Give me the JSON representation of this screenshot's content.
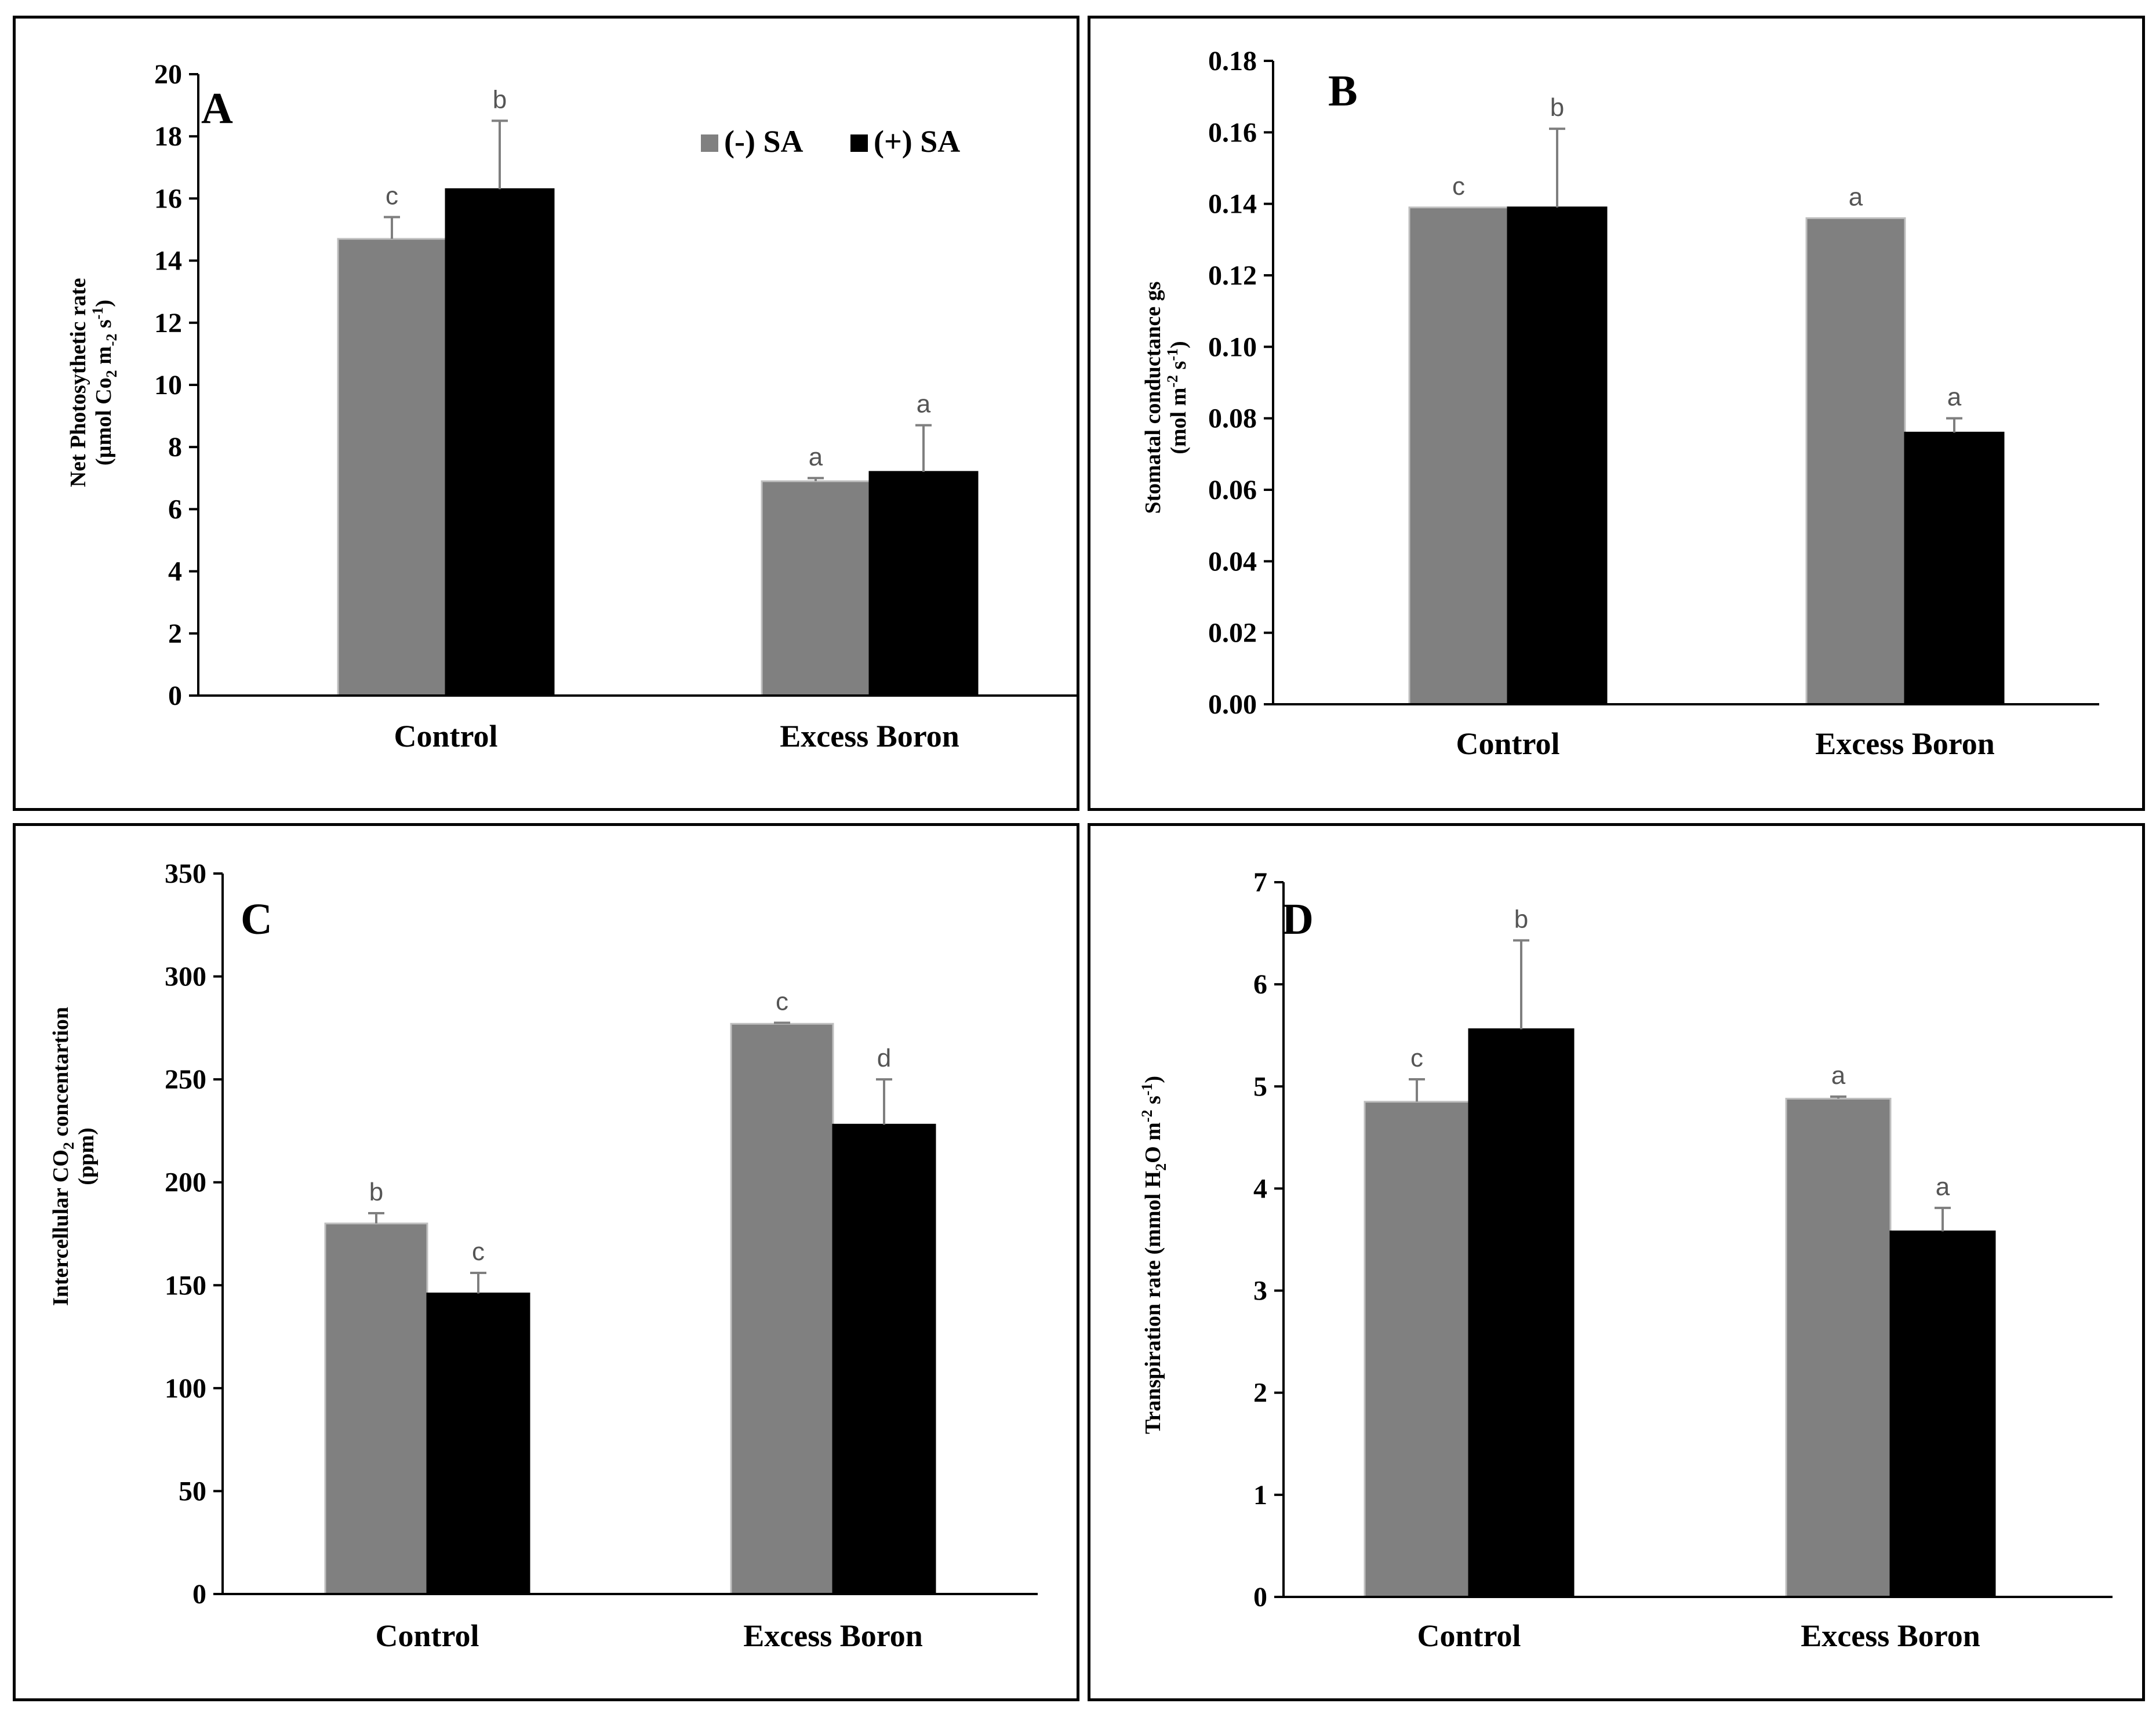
{
  "colors": {
    "minus_sa": "#808080",
    "plus_sa": "#000000",
    "error_bar": "#7f7f7f"
  },
  "legend": {
    "items": [
      "(-) SA",
      "(+) SA"
    ]
  },
  "chart_data": [
    {
      "panel": "A",
      "type": "bar",
      "categories": [
        "Control",
        "Excess Boron"
      ],
      "series": [
        {
          "name": "(-) SA",
          "values": [
            14.7,
            6.9
          ],
          "errors": [
            0.7,
            0.1
          ],
          "letters": [
            "c",
            "a"
          ]
        },
        {
          "name": "(+) SA",
          "values": [
            16.3,
            7.2
          ],
          "errors": [
            2.2,
            1.5
          ],
          "letters": [
            "b",
            "a"
          ]
        }
      ],
      "ylim": [
        0,
        20
      ],
      "yticks": [
        "0",
        "2",
        "4",
        "6",
        "8",
        "10",
        "12",
        "14",
        "16",
        "18",
        "20"
      ],
      "ylabel_line1": "Net Photosythetic rate",
      "ylabel_line2_parts": [
        "(µmol Co",
        "2",
        " m",
        "-2",
        " s",
        "-1",
        ")"
      ]
    },
    {
      "panel": "B",
      "type": "bar",
      "categories": [
        "Control",
        "Excess Boron"
      ],
      "series": [
        {
          "name": "(-) SA",
          "values": [
            0.139,
            0.136
          ],
          "errors": [
            0,
            0
          ],
          "letters": [
            "c",
            "a"
          ]
        },
        {
          "name": "(+) SA",
          "values": [
            0.139,
            0.076
          ],
          "errors": [
            0.022,
            0.004
          ],
          "letters": [
            "b",
            "a"
          ]
        }
      ],
      "ylim": [
        0,
        0.18
      ],
      "yticks": [
        "0.00",
        "0.02",
        "0.04",
        "0.06",
        "0.08",
        "0.10",
        "0.12",
        "0.14",
        "0.16",
        "0.18"
      ],
      "ylabel_line1": "Stomatal conductance gs",
      "ylabel_line2_parts": [
        "(mol m",
        "-2",
        "  s",
        "-1",
        ")"
      ]
    },
    {
      "panel": "C",
      "type": "bar",
      "categories": [
        "Control",
        "Excess Boron"
      ],
      "series": [
        {
          "name": "(-) SA",
          "values": [
            180,
            277
          ],
          "errors": [
            5,
            0.5
          ],
          "letters": [
            "b",
            "c"
          ]
        },
        {
          "name": "(+) SA",
          "values": [
            146,
            228
          ],
          "errors": [
            10,
            22
          ],
          "letters": [
            "c",
            "d"
          ]
        }
      ],
      "ylim": [
        0,
        350
      ],
      "yticks": [
        "0",
        "50",
        "100",
        "150",
        "200",
        "250",
        "300",
        "350"
      ],
      "ylabel_line1_parts": [
        "Intercellular CO",
        "2",
        " concentartion"
      ],
      "ylabel_line2": "(ppm)"
    },
    {
      "panel": "D",
      "type": "bar",
      "categories": [
        "Control",
        "Excess Boron"
      ],
      "series": [
        {
          "name": "(-) SA",
          "values": [
            4.85,
            4.88
          ],
          "errors": [
            0.22,
            0.02
          ],
          "letters": [
            "c",
            "a"
          ]
        },
        {
          "name": "(+) SA",
          "values": [
            5.56,
            3.58
          ],
          "errors": [
            0.87,
            0.23
          ],
          "letters": [
            "b",
            "a"
          ]
        }
      ],
      "ylim": [
        0,
        7
      ],
      "yticks": [
        "0",
        "1",
        "2",
        "3",
        "4",
        "5",
        "6",
        "7"
      ],
      "ylabel_parts": [
        "Transpiration rate (mmol H",
        "2",
        "O m",
        "-2",
        " s",
        "-1",
        ")"
      ]
    }
  ]
}
